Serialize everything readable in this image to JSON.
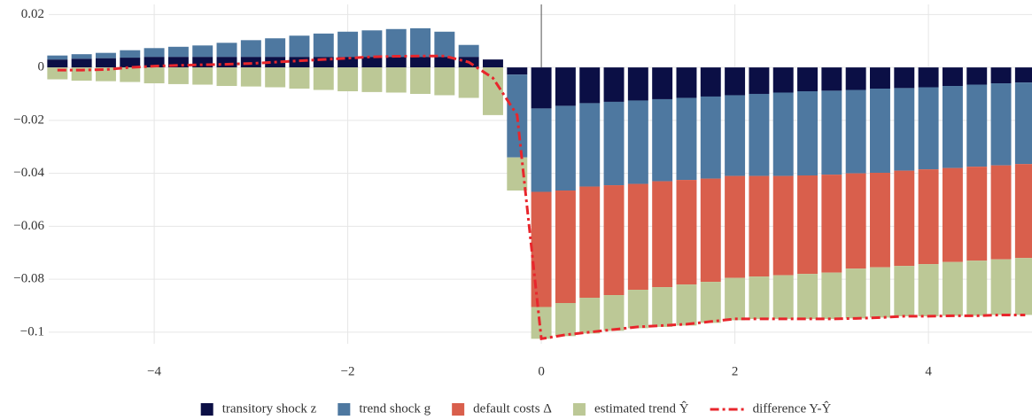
{
  "chart_data": {
    "type": "bar",
    "x": [
      -5,
      -4.75,
      -4.5,
      -4.25,
      -4,
      -3.75,
      -3.5,
      -3.25,
      -3,
      -2.75,
      -2.5,
      -2.25,
      -2,
      -1.75,
      -1.5,
      -1.25,
      -1,
      -0.75,
      -0.5,
      -0.25,
      0,
      0.25,
      0.5,
      0.75,
      1,
      1.25,
      1.5,
      1.75,
      2,
      2.25,
      2.5,
      2.75,
      3,
      3.25,
      3.5,
      3.75,
      4,
      4.25,
      4.5,
      4.75,
      5
    ],
    "series": [
      {
        "name": "transitory shock z",
        "type": "bar",
        "color": "#0b0f45",
        "values": [
          0.003,
          0.0033,
          0.0035,
          0.0037,
          0.004,
          0.004,
          0.004,
          0.004,
          0.004,
          0.004,
          0.004,
          0.004,
          0.004,
          0.004,
          0.004,
          0.004,
          0.004,
          0.004,
          0.003,
          -0.0027,
          -0.0155,
          -0.0145,
          -0.0135,
          -0.013,
          -0.0125,
          -0.012,
          -0.0115,
          -0.011,
          -0.0105,
          -0.01,
          -0.0095,
          -0.009,
          -0.0088,
          -0.0085,
          -0.008,
          -0.0078,
          -0.0075,
          -0.007,
          -0.0065,
          -0.006,
          -0.0057
        ]
      },
      {
        "name": "trend shock g",
        "type": "bar",
        "color": "#4e78a0",
        "values": [
          0.0015,
          0.0017,
          0.002,
          0.0028,
          0.0033,
          0.0038,
          0.0043,
          0.0053,
          0.0063,
          0.007,
          0.008,
          0.0088,
          0.0095,
          0.01,
          0.0105,
          0.0108,
          0.0095,
          0.0045,
          0,
          -0.0313,
          -0.0315,
          -0.032,
          -0.0315,
          -0.0315,
          -0.0315,
          -0.031,
          -0.031,
          -0.031,
          -0.0305,
          -0.031,
          -0.0315,
          -0.0318,
          -0.0317,
          -0.0315,
          -0.0318,
          -0.0312,
          -0.031,
          -0.031,
          -0.031,
          -0.031,
          -0.0308
        ]
      },
      {
        "name": "default costs Δ",
        "type": "bar",
        "color": "#d95f4c",
        "values": [
          0,
          0,
          0,
          0,
          0,
          0,
          0,
          0,
          0,
          0,
          0,
          0,
          0,
          0,
          0,
          0,
          0,
          0,
          0,
          0,
          -0.0435,
          -0.0425,
          -0.042,
          -0.0415,
          -0.04,
          -0.04,
          -0.0395,
          -0.039,
          -0.0385,
          -0.038,
          -0.0375,
          -0.0372,
          -0.037,
          -0.036,
          -0.0357,
          -0.036,
          -0.0358,
          -0.0355,
          -0.0355,
          -0.0355,
          -0.0355
        ]
      },
      {
        "name": "estimated trend Ŷ",
        "type": "bar",
        "color": "#bcc896",
        "values": [
          -0.0045,
          -0.005,
          -0.0052,
          -0.0055,
          -0.006,
          -0.0063,
          -0.0065,
          -0.007,
          -0.0072,
          -0.0075,
          -0.008,
          -0.0085,
          -0.009,
          -0.0093,
          -0.0095,
          -0.01,
          -0.0105,
          -0.0115,
          -0.018,
          -0.0125,
          -0.012,
          -0.0125,
          -0.0135,
          -0.0135,
          -0.0145,
          -0.015,
          -0.0155,
          -0.0155,
          -0.016,
          -0.016,
          -0.0165,
          -0.017,
          -0.0175,
          -0.0188,
          -0.019,
          -0.019,
          -0.0197,
          -0.0203,
          -0.0208,
          -0.021,
          -0.0215
        ]
      },
      {
        "name": "difference Y-Ŷ",
        "type": "line",
        "color": "#e8262c",
        "values": [
          -0.001,
          -0.001,
          -0.0008,
          0,
          0.0005,
          0.0008,
          0.001,
          0.0012,
          0.0015,
          0.002,
          0.0025,
          0.003,
          0.0035,
          0.004,
          0.0042,
          0.0043,
          0.0043,
          0.002,
          -0.004,
          -0.018,
          -0.1025,
          -0.101,
          -0.1,
          -0.099,
          -0.098,
          -0.0975,
          -0.097,
          -0.096,
          -0.095,
          -0.095,
          -0.095,
          -0.095,
          -0.095,
          -0.0948,
          -0.0945,
          -0.094,
          -0.094,
          -0.0938,
          -0.0938,
          -0.0935,
          -0.0935
        ]
      }
    ],
    "xlim": [
      -5.09,
      5.07
    ],
    "ylim": [
      -0.1044,
      0.0238
    ],
    "xticks": [
      {
        "value": -4,
        "label": "−4"
      },
      {
        "value": -2,
        "label": "−2"
      },
      0,
      2,
      4
    ],
    "yticks": [
      0.02,
      0,
      {
        "value": -0.02,
        "label": "−0.02"
      },
      {
        "value": -0.04,
        "label": "−0.04"
      },
      {
        "value": -0.06,
        "label": "−0.06"
      },
      {
        "value": -0.08,
        "label": "−0.08"
      },
      {
        "value": -0.1,
        "label": "−0.1"
      }
    ],
    "vline": 0,
    "grid": true,
    "legend": "bottom"
  }
}
